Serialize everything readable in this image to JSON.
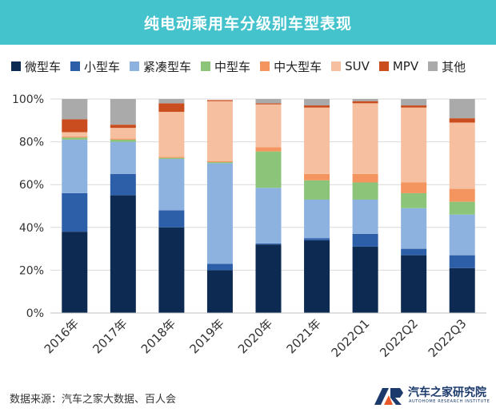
{
  "header": {
    "title": "纯电动乘用车分级别车型表现"
  },
  "footer": {
    "source": "数据来源：汽车之家大数据、百人会",
    "logo_name": "汽车之家研究院",
    "logo_sub": "AUTOHOME RESEARCH INSTITUTE"
  },
  "chart_data": {
    "type": "bar",
    "stacked": true,
    "title": "纯电动乘用车分级别车型表现",
    "xlabel": "",
    "ylabel": "",
    "ylim": [
      0,
      100
    ],
    "yticks": [
      "0%",
      "20%",
      "40%",
      "60%",
      "80%",
      "100%"
    ],
    "grid": true,
    "legend_position": "top",
    "categories": [
      "2016年",
      "2017年",
      "2018年",
      "2019年",
      "2020年",
      "2021年",
      "2022Q1",
      "2022Q2",
      "2022Q3"
    ],
    "series": [
      {
        "name": "微型车",
        "color": "#0d2a52",
        "values": [
          38,
          55,
          40,
          20,
          32,
          34,
          31,
          27,
          21
        ]
      },
      {
        "name": "小型车",
        "color": "#2d5fa8",
        "values": [
          18,
          10,
          8,
          3,
          0.5,
          1,
          6,
          3,
          6
        ]
      },
      {
        "name": "紧凑型车",
        "color": "#8db2e0",
        "values": [
          25,
          15,
          24,
          47,
          26,
          18,
          16,
          19,
          19
        ]
      },
      {
        "name": "中型车",
        "color": "#8cc57a",
        "values": [
          1,
          1,
          0.5,
          0.5,
          17,
          9,
          8,
          7,
          6
        ]
      },
      {
        "name": "中大型车",
        "color": "#f4955f",
        "values": [
          0.5,
          0.5,
          0.5,
          0.5,
          2,
          3,
          4,
          5,
          6
        ]
      },
      {
        "name": "SUV",
        "color": "#f6c0a0",
        "values": [
          2,
          5,
          21,
          28,
          20,
          31,
          33,
          35,
          31
        ]
      },
      {
        "name": "MPV",
        "color": "#c94d1e",
        "values": [
          6,
          1.5,
          4,
          0.5,
          0.5,
          1,
          1,
          1,
          2
        ]
      },
      {
        "name": "其他",
        "color": "#aaaaaa",
        "values": [
          9.5,
          12,
          2,
          0,
          2,
          3,
          1,
          3,
          9
        ]
      }
    ]
  }
}
